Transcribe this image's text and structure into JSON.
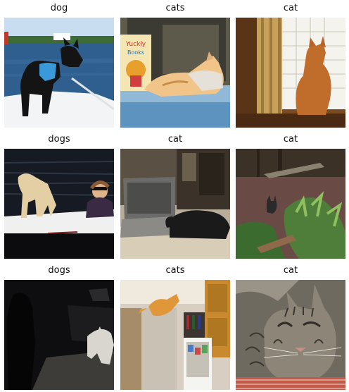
{
  "grid": {
    "items": [
      {
        "label": "dog"
      },
      {
        "label": "cats"
      },
      {
        "label": "cat"
      },
      {
        "label": "dogs"
      },
      {
        "label": "cat"
      },
      {
        "label": "cat"
      },
      {
        "label": "dogs"
      },
      {
        "label": "cats"
      },
      {
        "label": "cat"
      }
    ]
  },
  "book_cover_text": [
    "Yuckly",
    "Books"
  ]
}
